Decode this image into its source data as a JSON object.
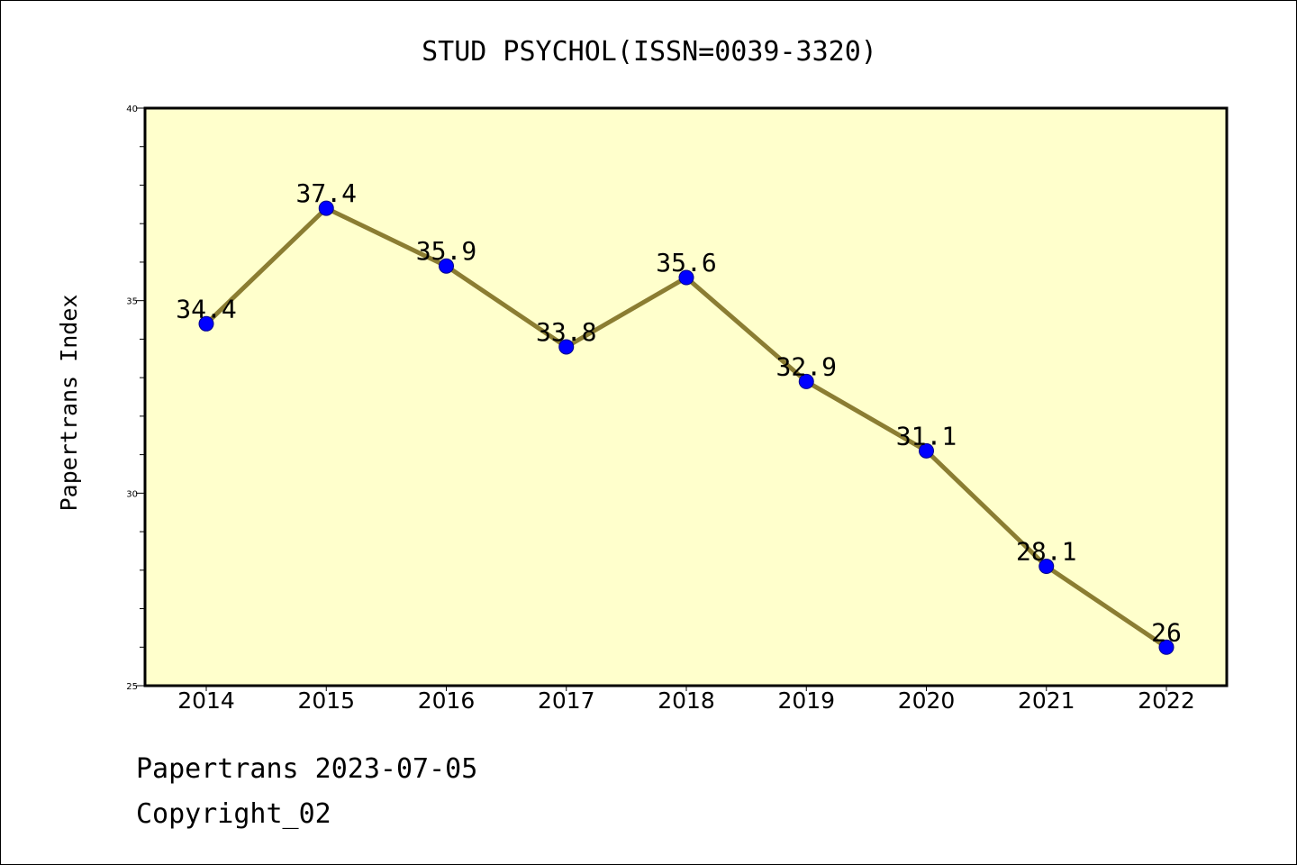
{
  "chart_data": {
    "type": "line",
    "title": "STUD PSYCHOL(ISSN=0039-3320)",
    "ylabel": "Papertrans Index",
    "xlabel": "",
    "categories": [
      "2014",
      "2015",
      "2016",
      "2017",
      "2018",
      "2019",
      "2020",
      "2021",
      "2022"
    ],
    "series": [
      {
        "values": [
          34.4,
          37.4,
          35.9,
          33.8,
          35.6,
          32.9,
          31.1,
          28.1,
          26
        ],
        "labels": [
          "34.4",
          "37.4",
          "35.9",
          "33.8",
          "35.6",
          "32.9",
          "31.1",
          "28.1",
          "26"
        ]
      }
    ],
    "ylim": [
      25,
      40
    ],
    "yticks": [
      "25",
      "30",
      "35",
      "40"
    ],
    "grid": false,
    "colors": {
      "plot_background": "#ffffcc",
      "line": "#8b7d32",
      "marker": "#0000ff"
    }
  },
  "footer": {
    "line1": "Papertrans 2023-07-05",
    "line2": "Copyright_02"
  }
}
